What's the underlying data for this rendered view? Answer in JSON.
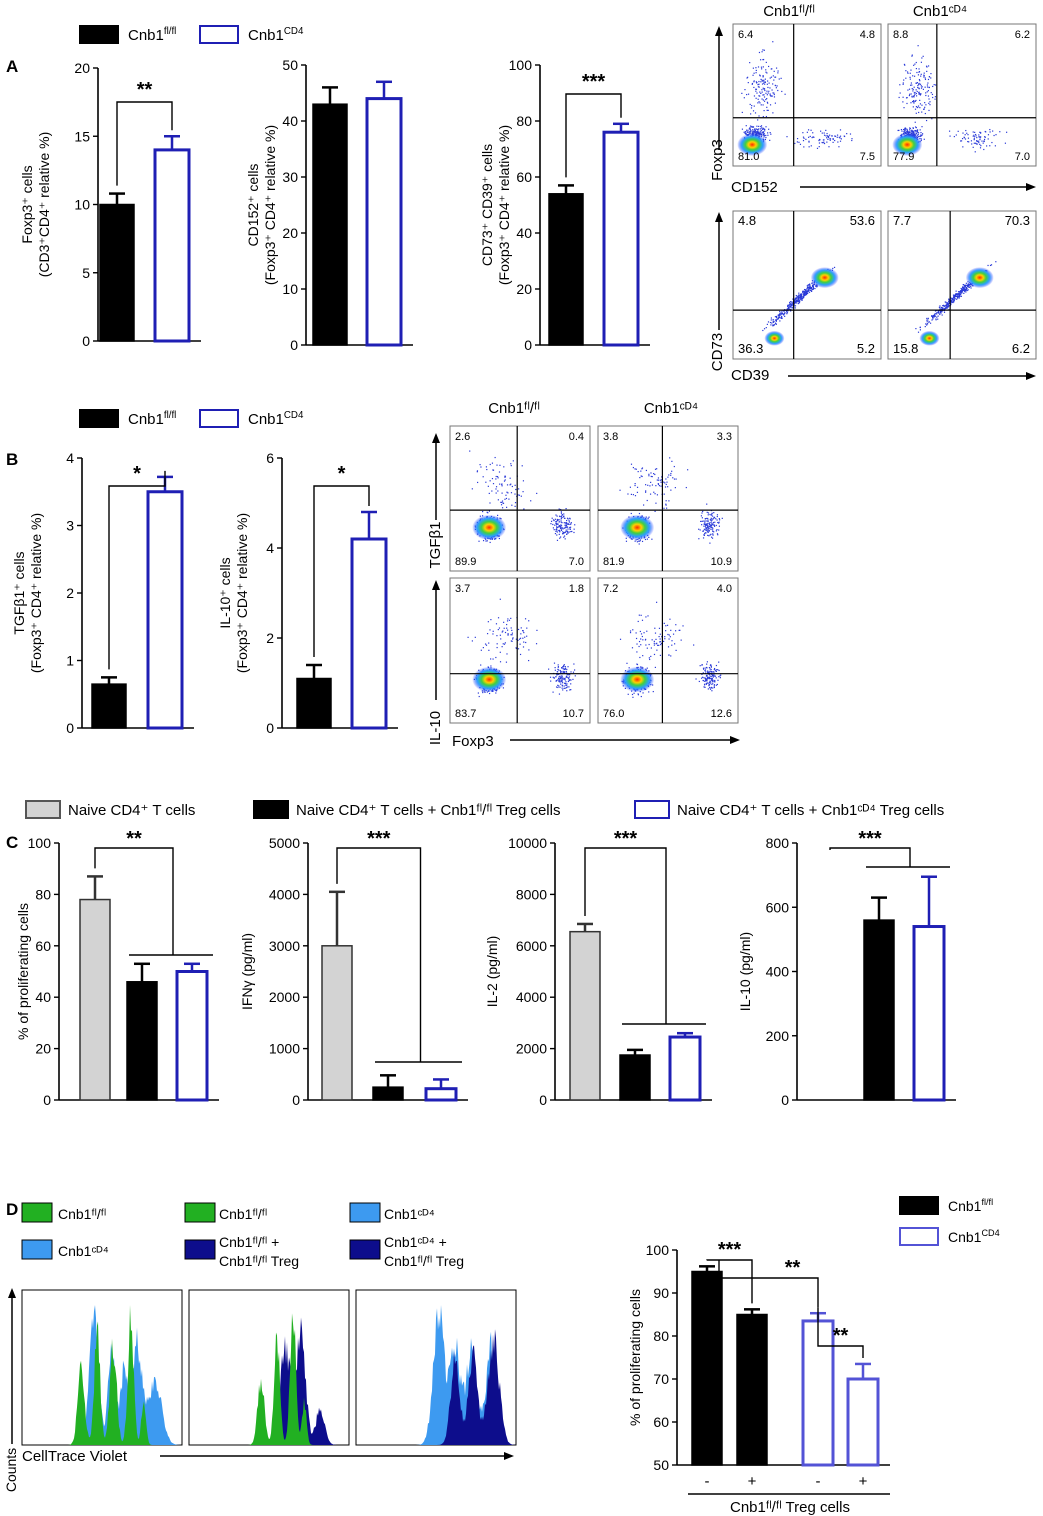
{
  "figure": {
    "panel_labels": [
      "A",
      "B",
      "C",
      "D"
    ],
    "legend_A": {
      "items": [
        {
          "text": "Cnb1",
          "sup": "fl/fl",
          "style": "filled"
        },
        {
          "text": "Cnb1",
          "sup": "CD4",
          "style": "open"
        }
      ]
    },
    "legend_B": {
      "items": [
        {
          "text": "Cnb1",
          "sup": "fl/fl",
          "style": "filled"
        },
        {
          "text": "Cnb1",
          "sup": "CD4",
          "style": "open"
        }
      ]
    },
    "legend_C": {
      "items": [
        {
          "text": "Naive CD4⁺ T cells",
          "style": "grey"
        },
        {
          "text": "Naive CD4⁺ T cells + Cnb1ᶠˡ/ᶠˡ Treg cells",
          "style": "filled"
        },
        {
          "text": "Naive CD4⁺ T cells + Cnb1ᶜᴰ⁴ Treg cells",
          "style": "open"
        }
      ]
    },
    "legend_D": {
      "items": [
        {
          "text": "Cnb1",
          "sup": "fl/fl",
          "style": "filled"
        },
        {
          "text": "Cnb1",
          "sup": "CD4",
          "style": "open-purple"
        }
      ]
    },
    "flow_A": {
      "col_labels": [
        "Cnb1ᶠˡ/ᶠˡ",
        "Cnb1ᶜᴰ⁴"
      ],
      "row1": {
        "y_axis": "Foxp3",
        "x_axis": "CD152",
        "quadrants": [
          [
            "6.4",
            "4.8",
            "81.0",
            "7.5"
          ],
          [
            "8.8",
            "6.2",
            "77.9",
            "7.0"
          ]
        ]
      },
      "row2": {
        "y_axis": "CD73",
        "x_axis": "CD39",
        "quadrants": [
          [
            "4.8",
            "53.6",
            "36.3",
            "5.2"
          ],
          [
            "7.7",
            "70.3",
            "15.8",
            "6.2"
          ]
        ]
      }
    },
    "flow_B": {
      "col_labels": [
        "Cnb1ᶠˡ/ᶠˡ",
        "Cnb1ᶜᴰ⁴"
      ],
      "x_axis": "Foxp3",
      "row1": {
        "y_axis": "TGFβ1",
        "quadrants": [
          [
            "2.6",
            "0.4",
            "89.9",
            "7.0"
          ],
          [
            "3.8",
            "3.3",
            "81.9",
            "10.9"
          ]
        ]
      },
      "row2": {
        "y_axis": "IL-10",
        "quadrants": [
          [
            "3.7",
            "1.8",
            "83.7",
            "10.7"
          ],
          [
            "7.2",
            "4.0",
            "76.0",
            "12.6"
          ]
        ]
      }
    },
    "histograms_D": {
      "y_axis": "Counts",
      "x_axis": "CellTrace Violet",
      "legend_groups": [
        [
          "Cnb1ᶠˡ/ᶠˡ",
          "Cnb1ᶜᴰ⁴"
        ],
        [
          "Cnb1ᶠˡ/ᶠˡ",
          "Cnb1ᶠˡ/ᶠˡ + Cnb1ᶠˡ/ᶠˡ Treg"
        ],
        [
          "Cnb1ᶜᴰ⁴",
          "Cnb1ᶜᴰ⁴ + Cnb1ᶠˡ/ᶠˡ Treg"
        ]
      ]
    },
    "colors": {
      "black": "#000000",
      "blue": "#1f1fb4",
      "grey": "#d3d3d3",
      "purple": "#5353d6",
      "green": "#22b022",
      "lightblue": "#3d9af0",
      "navy": "#0d0d8c"
    }
  },
  "chart_data": [
    {
      "id": "A1",
      "type": "bar",
      "title": "",
      "ylabel": "Foxp3⁺ cells (CD3⁺CD4⁺ relative %)",
      "categories": [
        "Cnb1ᶠˡ/ᶠˡ",
        "Cnb1ᶜᴰ⁴"
      ],
      "values": [
        10,
        14
      ],
      "errors": [
        0.8,
        1.0
      ],
      "ylim": [
        0,
        20
      ],
      "yticks": [
        0,
        5,
        10,
        15,
        20
      ],
      "significance": "**"
    },
    {
      "id": "A2",
      "type": "bar",
      "title": "",
      "ylabel": "CD152⁺ cells (Foxp3⁺ CD4⁺ relative %)",
      "categories": [
        "Cnb1ᶠˡ/ᶠˡ",
        "Cnb1ᶜᴰ⁴"
      ],
      "values": [
        43,
        44
      ],
      "errors": [
        3,
        3
      ],
      "ylim": [
        0,
        50
      ],
      "yticks": [
        0,
        10,
        20,
        30,
        40,
        50
      ],
      "significance": ""
    },
    {
      "id": "A3",
      "type": "bar",
      "title": "",
      "ylabel": "CD73⁺ CD39⁺ cells (Foxp3⁺ CD4⁺ relative %)",
      "categories": [
        "Cnb1ᶠˡ/ᶠˡ",
        "Cnb1ᶜᴰ⁴"
      ],
      "values": [
        54,
        76
      ],
      "errors": [
        3,
        3
      ],
      "ylim": [
        0,
        100
      ],
      "yticks": [
        0,
        20,
        40,
        60,
        80,
        100
      ],
      "significance": "***"
    },
    {
      "id": "B1",
      "type": "bar",
      "title": "",
      "ylabel": "TGFβ1⁺ cells (Foxp3⁺ CD4⁺ relative %)",
      "categories": [
        "Cnb1ᶠˡ/ᶠˡ",
        "Cnb1ᶜᴰ⁴"
      ],
      "values": [
        0.65,
        3.5
      ],
      "errors": [
        0.1,
        0.22
      ],
      "ylim": [
        0,
        4
      ],
      "yticks": [
        0,
        1,
        2,
        3,
        4
      ],
      "significance": "*"
    },
    {
      "id": "B2",
      "type": "bar",
      "title": "",
      "ylabel": "IL-10⁺ cells (Foxp3⁺ CD4⁺ relative %)",
      "categories": [
        "Cnb1ᶠˡ/ᶠˡ",
        "Cnb1ᶜᴰ⁴"
      ],
      "values": [
        1.1,
        4.2
      ],
      "errors": [
        0.3,
        0.6
      ],
      "ylim": [
        0,
        6
      ],
      "yticks": [
        0,
        2,
        4,
        6
      ],
      "significance": "*"
    },
    {
      "id": "C1",
      "type": "bar",
      "title": "",
      "ylabel": "% of proliferating cells",
      "categories": [
        "Naive",
        "+ Cnb1ᶠˡ/ᶠˡ Treg",
        "+ Cnb1ᶜᴰ⁴ Treg"
      ],
      "values": [
        78,
        46,
        50
      ],
      "errors": [
        9,
        7,
        3
      ],
      "ylim": [
        0,
        100
      ],
      "yticks": [
        0,
        20,
        40,
        60,
        80,
        100
      ],
      "significance": "**"
    },
    {
      "id": "C2",
      "type": "bar",
      "title": "",
      "ylabel": "IFNγ (pg/ml)",
      "categories": [
        "Naive",
        "+ Cnb1ᶠˡ/ᶠˡ Treg",
        "+ Cnb1ᶜᴰ⁴ Treg"
      ],
      "values": [
        3000,
        250,
        220
      ],
      "errors": [
        1050,
        230,
        180
      ],
      "ylim": [
        0,
        5000
      ],
      "yticks": [
        0,
        1000,
        2000,
        3000,
        4000,
        5000
      ],
      "significance": "***"
    },
    {
      "id": "C3",
      "type": "bar",
      "title": "",
      "ylabel": "IL-2 (pg/ml)",
      "categories": [
        "Naive",
        "+ Cnb1ᶠˡ/ᶠˡ Treg",
        "+ Cnb1ᶜᴰ⁴ Treg"
      ],
      "values": [
        6550,
        1750,
        2450
      ],
      "errors": [
        300,
        200,
        150
      ],
      "ylim": [
        0,
        10000
      ],
      "yticks": [
        0,
        2000,
        4000,
        6000,
        8000,
        10000
      ],
      "significance": "***"
    },
    {
      "id": "C4",
      "type": "bar",
      "title": "",
      "ylabel": "IL-10 (pg/ml)",
      "categories": [
        "Naive",
        "+ Cnb1ᶠˡ/ᶠˡ Treg",
        "+ Cnb1ᶜᴰ⁴ Treg"
      ],
      "values": [
        0,
        560,
        540
      ],
      "errors": [
        0,
        70,
        155
      ],
      "ylim": [
        0,
        800
      ],
      "yticks": [
        0,
        200,
        400,
        600,
        800
      ],
      "significance": "***"
    },
    {
      "id": "D1",
      "type": "bar",
      "title": "",
      "ylabel": "% of proliferating cells",
      "xlabel": "Cnb1ᶠˡ/ᶠˡ Treg cells",
      "categories": [
        "-",
        "+",
        "-",
        "+"
      ],
      "values": [
        95,
        85,
        83.5,
        70
      ],
      "errors": [
        1.2,
        1.2,
        1.8,
        3.5
      ],
      "ylim": [
        50,
        100
      ],
      "yticks": [
        50,
        60,
        70,
        80,
        90,
        100
      ],
      "significance": [
        "***",
        "**",
        "**"
      ]
    }
  ]
}
